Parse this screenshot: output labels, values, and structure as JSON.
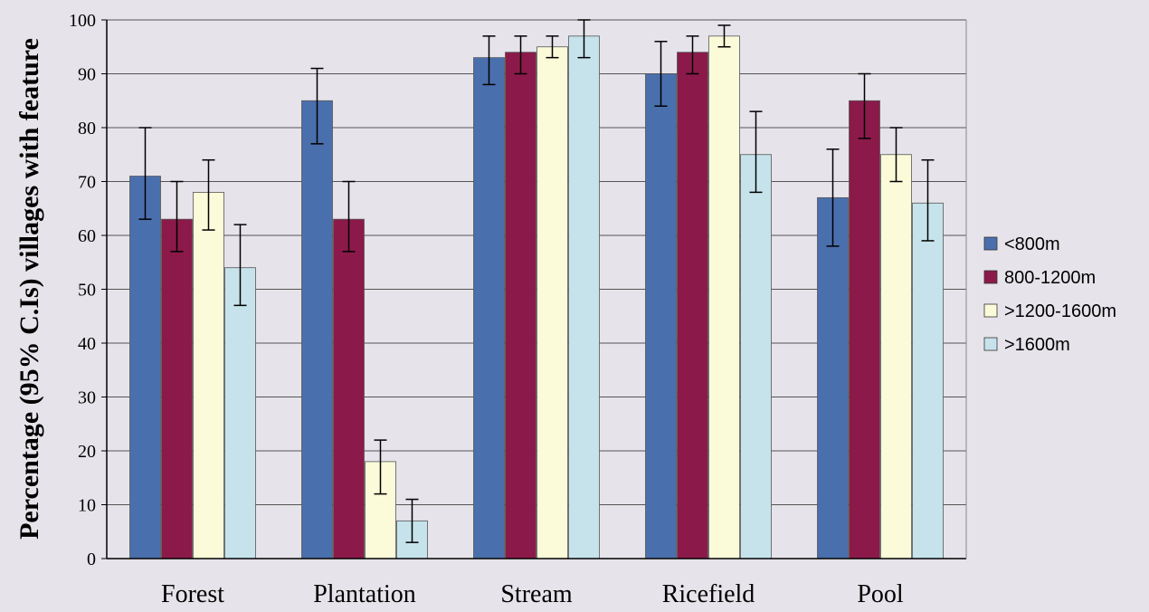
{
  "chart_data": {
    "type": "bar",
    "title": "",
    "ylabel": "Percentage (95% C.Is) villages with feature",
    "xlabel": "",
    "ylim": [
      0,
      100
    ],
    "yticks": [
      "0",
      "10",
      "20",
      "30",
      "40",
      "50",
      "60",
      "70",
      "80",
      "90",
      "100"
    ],
    "grid": true,
    "legend_position": "right",
    "categories": [
      "Forest",
      "Plantation",
      "Stream",
      "Ricefield",
      "Pool"
    ],
    "series": [
      {
        "name": "<800m",
        "color": "#4a6fad",
        "values": [
          71,
          85,
          93,
          90,
          67
        ],
        "ci_low": [
          63,
          77,
          88,
          84,
          58
        ],
        "ci_high": [
          80,
          91,
          97,
          96,
          76
        ]
      },
      {
        "name": "800-1200m",
        "color": "#8b1a4a",
        "values": [
          63,
          63,
          94,
          94,
          85
        ],
        "ci_low": [
          57,
          57,
          90,
          90,
          78
        ],
        "ci_high": [
          70,
          70,
          97,
          97,
          90
        ]
      },
      {
        "name": ">1200-1600m",
        "color": "#fbfbd9",
        "values": [
          68,
          18,
          95,
          97,
          75
        ],
        "ci_low": [
          61,
          12,
          93,
          95,
          70
        ],
        "ci_high": [
          74,
          22,
          97,
          99,
          80
        ]
      },
      {
        "name": ">1600m",
        "color": "#c6e3ec",
        "values": [
          54,
          7,
          97,
          75,
          66
        ],
        "ci_low": [
          47,
          3,
          93,
          68,
          59
        ],
        "ci_high": [
          62,
          11,
          100,
          83,
          74
        ]
      }
    ]
  }
}
